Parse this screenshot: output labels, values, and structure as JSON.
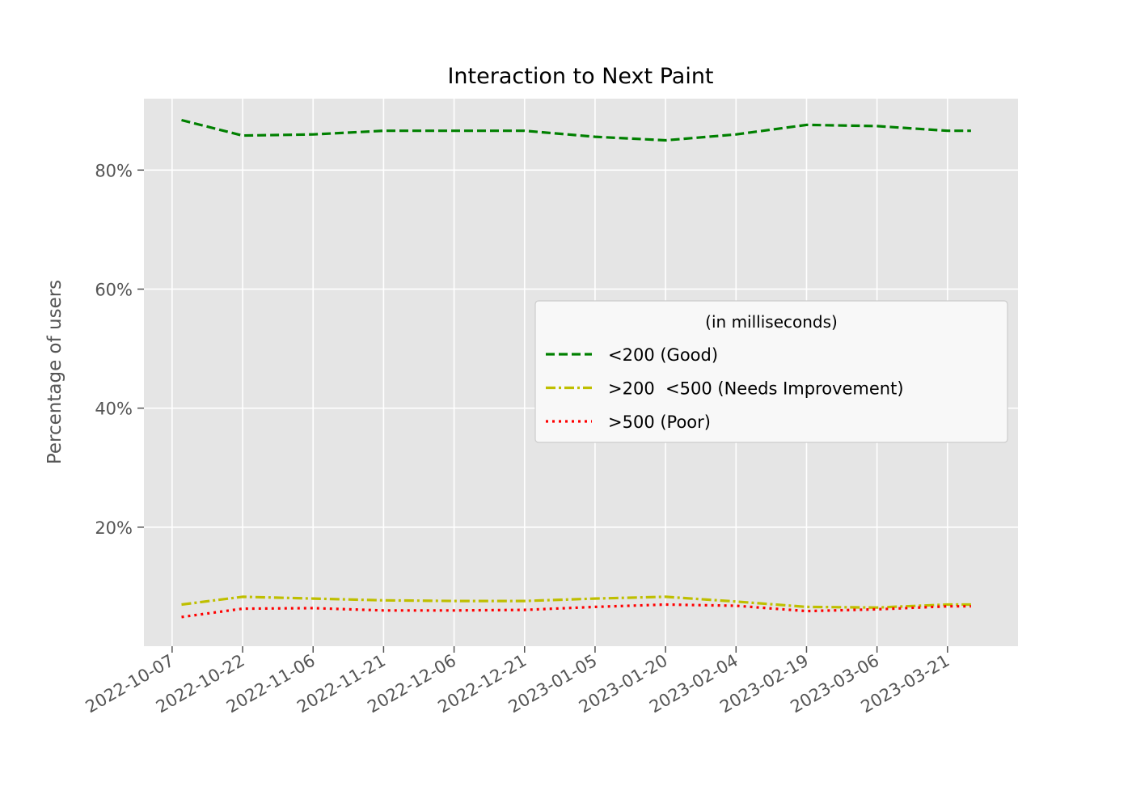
{
  "chart_data": {
    "type": "line",
    "title": "Interaction to Next Paint",
    "xlabel": "",
    "ylabel": "Percentage of users",
    "xlim": [
      "2022-10-01",
      "2023-04-05"
    ],
    "ylim": [
      0.0,
      0.92
    ],
    "yticks": [
      {
        "value": 0.2,
        "label": "20%"
      },
      {
        "value": 0.4,
        "label": "40%"
      },
      {
        "value": 0.6,
        "label": "60%"
      },
      {
        "value": 0.8,
        "label": "80%"
      }
    ],
    "xticks": [
      "2022-10-07",
      "2022-10-22",
      "2022-11-06",
      "2022-11-21",
      "2022-12-06",
      "2022-12-21",
      "2023-01-05",
      "2023-01-20",
      "2023-02-04",
      "2023-02-19",
      "2023-03-06",
      "2023-03-21"
    ],
    "grid": true,
    "legend": {
      "title": "(in milliseconds)",
      "position": "center-right"
    },
    "x": [
      "2022-10-09",
      "2022-10-22",
      "2022-11-06",
      "2022-11-21",
      "2022-12-06",
      "2022-12-21",
      "2023-01-05",
      "2023-01-20",
      "2023-02-04",
      "2023-02-19",
      "2023-03-06",
      "2023-03-21",
      "2023-03-26"
    ],
    "series": [
      {
        "name": "<200 (Good)",
        "color": "#008000",
        "dash": "dashed",
        "values": [
          0.884,
          0.858,
          0.86,
          0.866,
          0.866,
          0.866,
          0.856,
          0.85,
          0.86,
          0.876,
          0.874,
          0.866,
          0.866
        ]
      },
      {
        "name": ">200  <500 (Needs Improvement)",
        "color": "#bfbf00",
        "dash": "dashdot",
        "values": [
          0.07,
          0.083,
          0.08,
          0.077,
          0.076,
          0.076,
          0.08,
          0.083,
          0.075,
          0.066,
          0.065,
          0.07,
          0.07
        ]
      },
      {
        "name": ">500 (Poor)",
        "color": "#ff0000",
        "dash": "dotted",
        "values": [
          0.049,
          0.063,
          0.064,
          0.06,
          0.06,
          0.061,
          0.066,
          0.07,
          0.068,
          0.059,
          0.062,
          0.067,
          0.067
        ]
      }
    ]
  }
}
